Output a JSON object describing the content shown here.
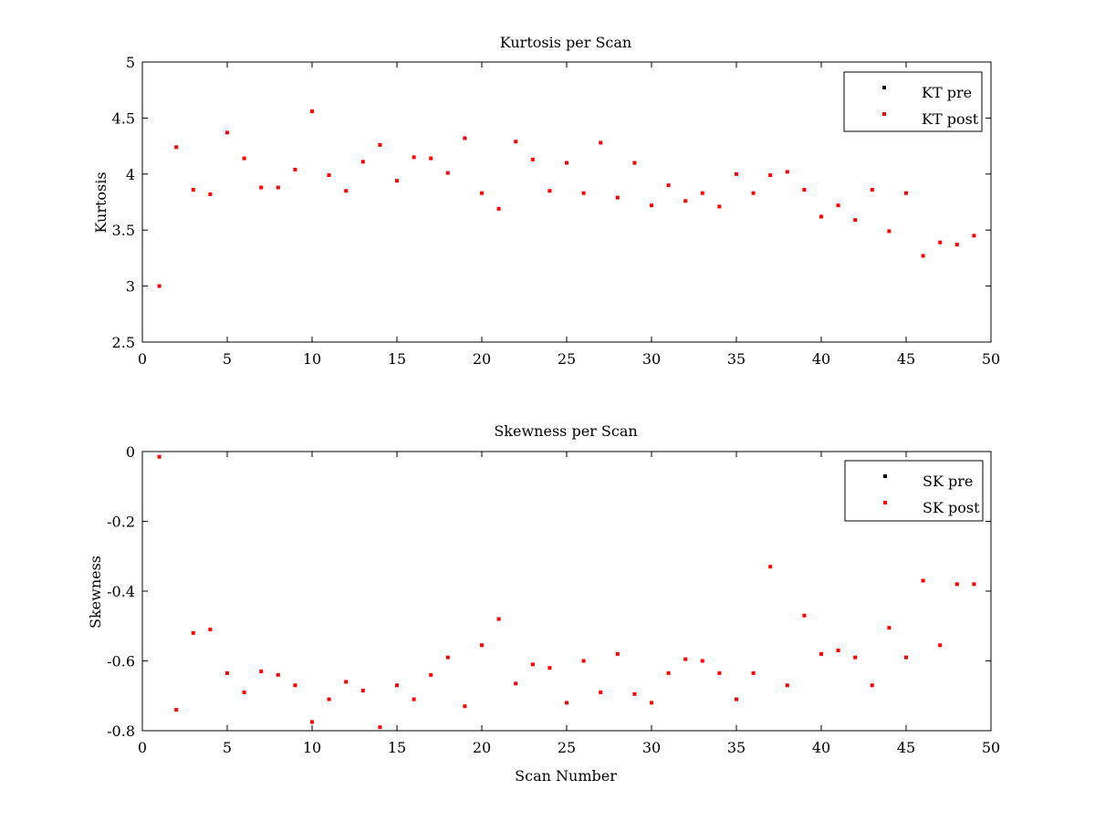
{
  "chart_data": [
    {
      "type": "scatter",
      "title": "Kurtosis per Scan",
      "xlabel": "",
      "ylabel": "Kurtosis",
      "xlim": [
        0,
        50
      ],
      "ylim": [
        2.5,
        5
      ],
      "xticks": [
        0,
        5,
        10,
        15,
        20,
        25,
        30,
        35,
        40,
        45,
        50
      ],
      "xtick_labels": [
        "0",
        "5",
        "10",
        "15",
        "20",
        "25",
        "30",
        "35",
        "40",
        "45",
        "50"
      ],
      "yticks": [
        2.5,
        3,
        3.5,
        4,
        4.5,
        5
      ],
      "ytick_labels": [
        "2.5",
        "3",
        "3.5",
        "4",
        "4.5",
        "5"
      ],
      "grid": false,
      "legend_position": "top-right",
      "series": [
        {
          "name": "KT pre",
          "color": "#000000",
          "x": [],
          "y": []
        },
        {
          "name": "KT post",
          "color": "#ff0000",
          "x": [
            1,
            2,
            3,
            4,
            5,
            6,
            7,
            8,
            9,
            10,
            11,
            12,
            13,
            14,
            15,
            16,
            17,
            18,
            19,
            20,
            21,
            22,
            23,
            24,
            25,
            26,
            27,
            28,
            29,
            30,
            31,
            32,
            33,
            34,
            35,
            36,
            37,
            38,
            39,
            40,
            41,
            42,
            43,
            44,
            45,
            46,
            47,
            48,
            49
          ],
          "y": [
            3.0,
            4.24,
            3.86,
            3.82,
            4.37,
            4.14,
            3.88,
            3.88,
            4.04,
            4.56,
            3.99,
            3.85,
            4.11,
            4.26,
            3.94,
            4.15,
            4.14,
            4.01,
            4.32,
            3.83,
            3.69,
            4.29,
            4.13,
            3.85,
            4.1,
            3.83,
            4.28,
            3.79,
            4.1,
            3.72,
            3.9,
            3.76,
            3.83,
            3.71,
            4.0,
            3.83,
            3.99,
            4.02,
            3.86,
            3.62,
            3.72,
            3.59,
            3.86,
            3.49,
            3.83,
            3.27,
            3.39,
            3.37,
            3.45
          ]
        }
      ]
    },
    {
      "type": "scatter",
      "title": "Skewness per Scan",
      "xlabel": "Scan Number",
      "ylabel": "Skewness",
      "xlim": [
        0,
        50
      ],
      "ylim": [
        -0.8,
        0
      ],
      "xticks": [
        0,
        5,
        10,
        15,
        20,
        25,
        30,
        35,
        40,
        45,
        50
      ],
      "xtick_labels": [
        "0",
        "5",
        "10",
        "15",
        "20",
        "25",
        "30",
        "35",
        "40",
        "45",
        "50"
      ],
      "yticks": [
        -0.8,
        -0.6,
        -0.4,
        -0.2,
        0
      ],
      "ytick_labels": [
        "-0.8",
        "-0.6",
        "-0.4",
        "-0.2",
        "0"
      ],
      "grid": false,
      "legend_position": "top-right",
      "series": [
        {
          "name": "SK pre",
          "color": "#000000",
          "x": [],
          "y": []
        },
        {
          "name": "SK post",
          "color": "#ff0000",
          "x": [
            1,
            2,
            3,
            4,
            5,
            6,
            7,
            8,
            9,
            10,
            11,
            12,
            13,
            14,
            15,
            16,
            17,
            18,
            19,
            20,
            21,
            22,
            23,
            24,
            25,
            26,
            27,
            28,
            29,
            30,
            31,
            32,
            33,
            34,
            35,
            36,
            37,
            38,
            39,
            40,
            41,
            42,
            43,
            44,
            45,
            46,
            47,
            48,
            49
          ],
          "y": [
            -0.015,
            -0.74,
            -0.52,
            -0.51,
            -0.635,
            -0.69,
            -0.63,
            -0.64,
            -0.67,
            -0.775,
            -0.71,
            -0.66,
            -0.685,
            -0.79,
            -0.67,
            -0.71,
            -0.64,
            -0.59,
            -0.73,
            -0.555,
            -0.48,
            -0.665,
            -0.61,
            -0.62,
            -0.72,
            -0.6,
            -0.69,
            -0.58,
            -0.695,
            -0.72,
            -0.635,
            -0.595,
            -0.6,
            -0.635,
            -0.71,
            -0.635,
            -0.33,
            -0.67,
            -0.47,
            -0.58,
            -0.57,
            -0.59,
            -0.67,
            -0.505,
            -0.59,
            -0.37,
            -0.555,
            -0.38,
            -0.38
          ]
        }
      ]
    }
  ]
}
